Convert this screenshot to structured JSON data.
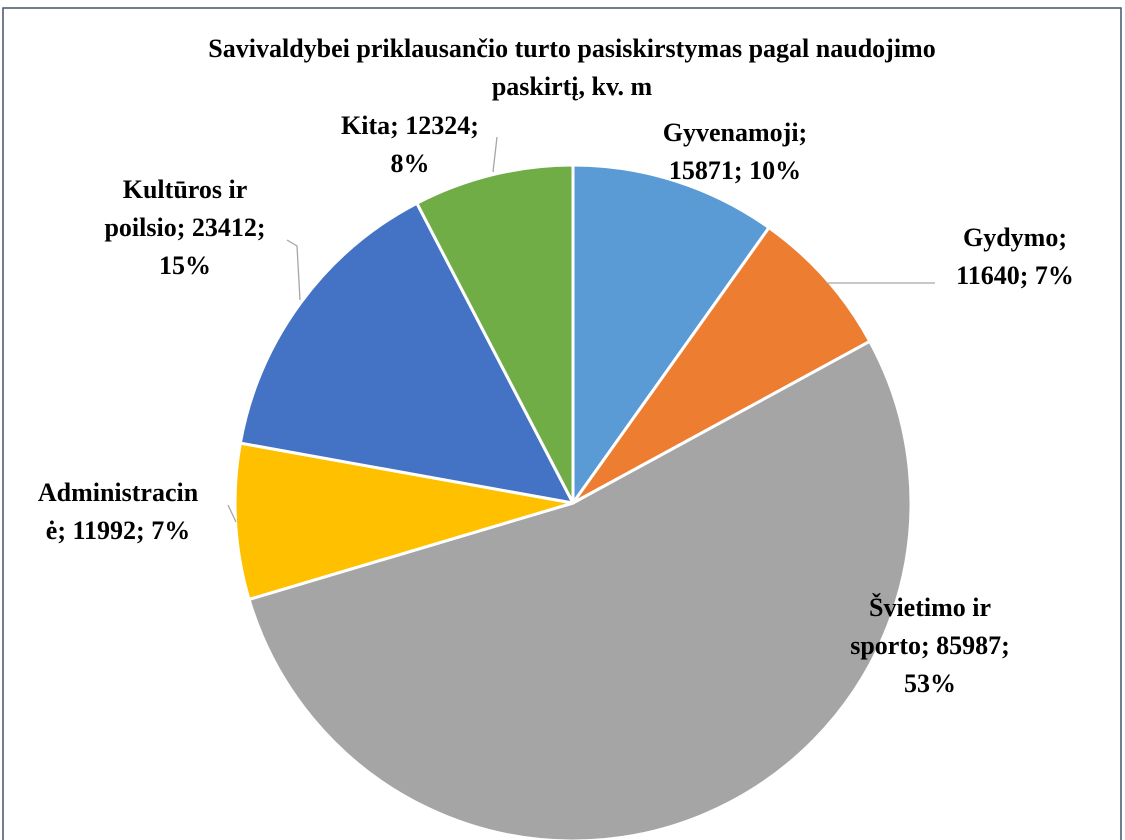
{
  "chart_data": {
    "type": "pie",
    "title": "Savivaldybei priklausančio turto pasiskirstymas pagal naudojimo paskirtį, kv. m",
    "categories": [
      "Gyvenamoji",
      "Gydymo",
      "Švietimo ir sporto",
      "Administracinė",
      "Kultūros ir poilsio",
      "Kita"
    ],
    "values": [
      15871,
      11640,
      85987,
      11992,
      23412,
      12324
    ],
    "value_labels": [
      [
        "Gyvenamoji;",
        "15871; 10%"
      ],
      [
        "Gydymo;",
        "11640; 7%"
      ],
      [
        "Švietimo ir",
        "sporto; 85987;",
        "53%"
      ],
      [
        "Administracin",
        "ė; 11992; 7%"
      ],
      [
        "Kultūros ir",
        "poilsio; 23412;",
        "15%"
      ],
      [
        "Kita; 12324;",
        "8%"
      ]
    ],
    "colors": [
      "#5b9bd5",
      "#ed7d31",
      "#a5a5a5",
      "#ffc000",
      "#4472c4",
      "#70ad47"
    ]
  }
}
